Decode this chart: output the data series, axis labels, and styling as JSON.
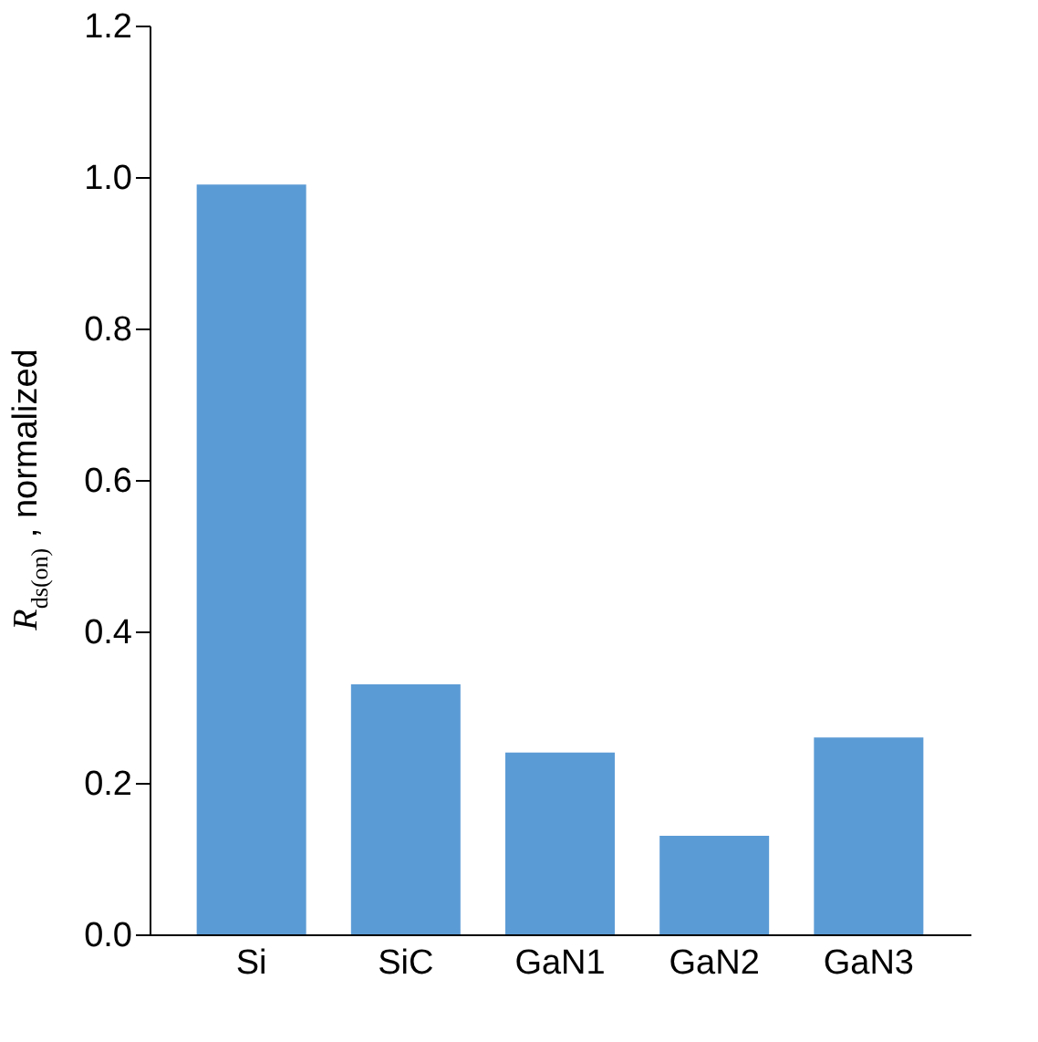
{
  "chart_data": {
    "type": "bar",
    "ylabel": "R$_{ds(on)}$, normalized",
    "categories": [
      "Si",
      "SiC",
      "GaN1",
      "GaN2",
      "GaN3"
    ],
    "values": [
      0.99,
      0.33,
      0.24,
      0.13,
      0.26
    ],
    "color": "#5b9bd5",
    "ylim": [
      0,
      1.2
    ],
    "yticks": [
      {
        "value": 0,
        "label": "0.0"
      },
      0.2,
      0.4,
      0.6,
      0.8,
      {
        "value": 1,
        "label": "1.0"
      },
      1.2
    ],
    "grid": false
  }
}
